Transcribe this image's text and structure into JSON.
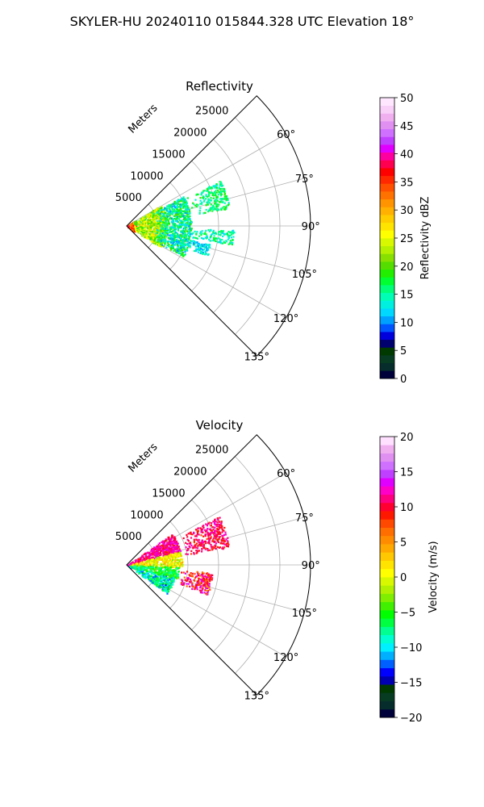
{
  "figure": {
    "suptitle": "SKYLER-HU  20240110  015844.328 UTC Elevation 18°"
  },
  "colors": {
    "grid": "#b0b0b0",
    "axis": "#000000"
  },
  "chart_data": [
    {
      "type": "heatmap",
      "title": "Reflectivity",
      "radial_label": "Meters",
      "radial_ticks": [
        5000,
        10000,
        15000,
        20000,
        25000
      ],
      "radial_tick_labels": [
        "5000",
        "10000",
        "15000",
        "20000",
        "25000"
      ],
      "rlim": [
        0,
        30000
      ],
      "theta_ticks": [
        60,
        75,
        90,
        105,
        120,
        135
      ],
      "theta_tick_labels": [
        "60°",
        "75°",
        "90°",
        "105°",
        "120°",
        "135°"
      ],
      "theta_range_deg": [
        45,
        135
      ],
      "grid": true,
      "colorbar": {
        "label": "Reflectivity dBZ",
        "range": [
          0,
          50
        ],
        "ticks": [
          0,
          5,
          10,
          15,
          20,
          25,
          30,
          35,
          40,
          45,
          50
        ],
        "tick_labels": [
          "0",
          "5",
          "10",
          "15",
          "20",
          "25",
          "30",
          "35",
          "40",
          "45",
          "50"
        ],
        "colors": [
          "#00003a",
          "#062c2c",
          "#073c22",
          "#003a00",
          "#00006e",
          "#0000dc",
          "#0055ff",
          "#00a0ff",
          "#00d8ff",
          "#00f0e0",
          "#00ffb4",
          "#00ff78",
          "#00ff30",
          "#22ee00",
          "#55dd00",
          "#88e000",
          "#b4f000",
          "#d8f800",
          "#ffff00",
          "#ffe400",
          "#ffcc00",
          "#ffb000",
          "#ff9400",
          "#ff7200",
          "#ff5000",
          "#ff2800",
          "#ff0000",
          "#ff0050",
          "#ff00a0",
          "#e000ff",
          "#c040ff",
          "#d070ff",
          "#e090f0",
          "#f0b0f0",
          "#f8d0f8",
          "#ffe8ff"
        ]
      },
      "echo_clusters": [
        {
          "az_range": [
            55,
            125
          ],
          "r_range": [
            0,
            1500
          ],
          "value_range": [
            28,
            38
          ]
        },
        {
          "az_range": [
            58,
            122
          ],
          "r_range": [
            1000,
            6500
          ],
          "value_range": [
            18,
            28
          ]
        },
        {
          "az_range": [
            62,
            118
          ],
          "r_range": [
            4500,
            10500
          ],
          "value_range": [
            10,
            20
          ]
        },
        {
          "az_range": [
            64,
            80
          ],
          "r_range": [
            10500,
            17000
          ],
          "value_range": [
            13,
            19
          ]
        },
        {
          "az_range": [
            92,
            100
          ],
          "r_range": [
            10000,
            17500
          ],
          "value_range": [
            12,
            18
          ]
        },
        {
          "az_range": [
            102,
            110
          ],
          "r_range": [
            7500,
            14000
          ],
          "value_range": [
            10,
            16
          ]
        }
      ]
    },
    {
      "type": "heatmap",
      "title": "Velocity",
      "radial_label": "Meters",
      "radial_ticks": [
        5000,
        10000,
        15000,
        20000,
        25000
      ],
      "radial_tick_labels": [
        "5000",
        "10000",
        "15000",
        "20000",
        "25000"
      ],
      "rlim": [
        0,
        30000
      ],
      "theta_ticks": [
        60,
        75,
        90,
        105,
        120,
        135
      ],
      "theta_tick_labels": [
        "60°",
        "75°",
        "90°",
        "105°",
        "120°",
        "135°"
      ],
      "theta_range_deg": [
        45,
        135
      ],
      "grid": true,
      "colorbar": {
        "label": "Velocity (m/s)",
        "range": [
          -20,
          20
        ],
        "ticks": [
          -20,
          -15,
          -10,
          -5,
          0,
          5,
          10,
          15,
          20
        ],
        "tick_labels": [
          "−20",
          "−15",
          "−10",
          "−5",
          "0",
          "5",
          "10",
          "15",
          "20"
        ],
        "colors": [
          "#00003a",
          "#062c2c",
          "#073c22",
          "#003a00",
          "#0000b0",
          "#0000ff",
          "#0060ff",
          "#00b0ff",
          "#00f0ff",
          "#00ffd0",
          "#00ff90",
          "#00ff40",
          "#00ff00",
          "#40f000",
          "#80ee00",
          "#b0f000",
          "#d8f800",
          "#ffff00",
          "#ffe400",
          "#ffc800",
          "#ffa800",
          "#ff8c00",
          "#ff6e00",
          "#ff4800",
          "#ff1800",
          "#ff0030",
          "#ff0080",
          "#ff00c8",
          "#e000ff",
          "#c040ff",
          "#d070ff",
          "#e090f0",
          "#f0b0f0",
          "#ffe0ff"
        ]
      },
      "echo_clusters": [
        {
          "az_range": [
            55,
            75
          ],
          "r_range": [
            0,
            9000
          ],
          "value_range": [
            9,
            14
          ]
        },
        {
          "az_range": [
            75,
            92
          ],
          "r_range": [
            0,
            9000
          ],
          "value_range": [
            -3,
            4
          ]
        },
        {
          "az_range": [
            92,
            105
          ],
          "r_range": [
            0,
            8500
          ],
          "value_range": [
            -9,
            -3
          ]
        },
        {
          "az_range": [
            105,
            125
          ],
          "r_range": [
            0,
            8000
          ],
          "value_range": [
            -13,
            -5
          ]
        },
        {
          "az_range": [
            62,
            80
          ],
          "r_range": [
            9000,
            17000
          ],
          "value_range": [
            8,
            13
          ]
        },
        {
          "az_range": [
            95,
            110
          ],
          "r_range": [
            8000,
            14000
          ],
          "value_range": [
            5,
            14
          ]
        }
      ]
    }
  ]
}
